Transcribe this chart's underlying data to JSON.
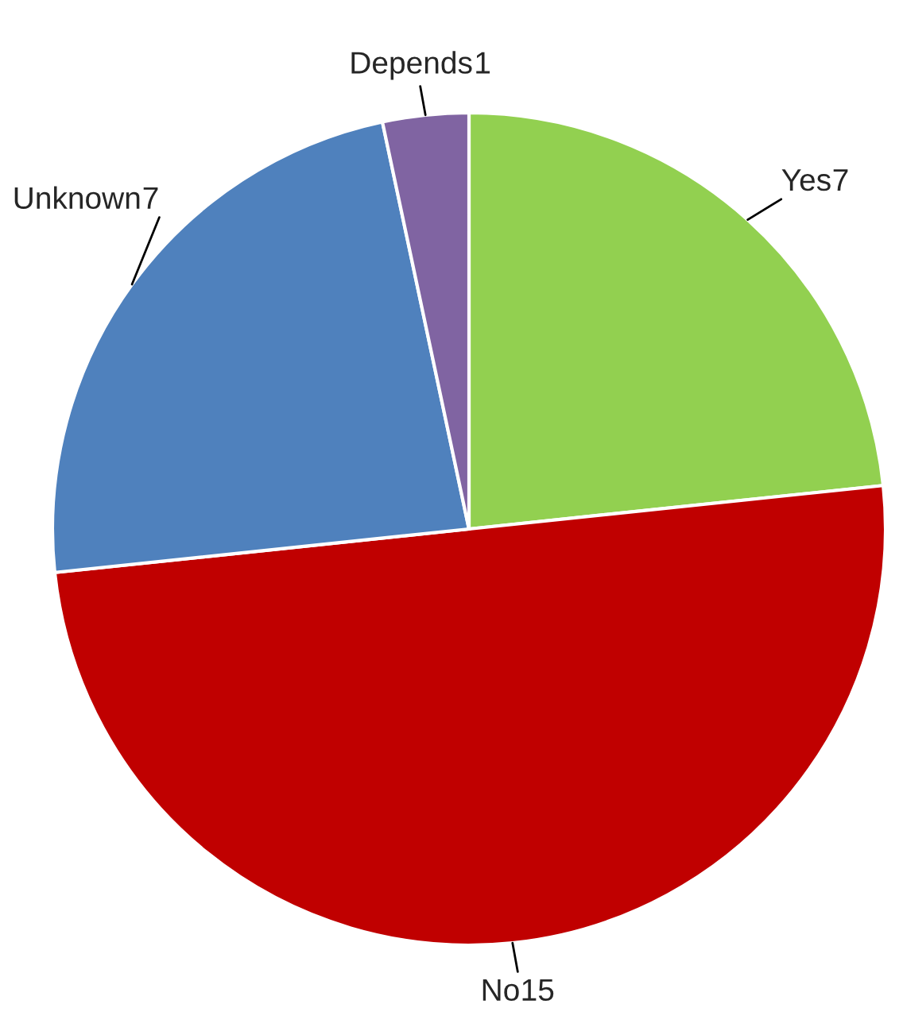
{
  "chart_data": {
    "type": "pie",
    "categories": [
      "Yes",
      "No",
      "Unknown",
      "Depends"
    ],
    "values": [
      7,
      15,
      7,
      1
    ],
    "colors": [
      "#92d050",
      "#c00000",
      "#4f81bd",
      "#8064a2"
    ],
    "data_labels": true,
    "legend": false
  }
}
